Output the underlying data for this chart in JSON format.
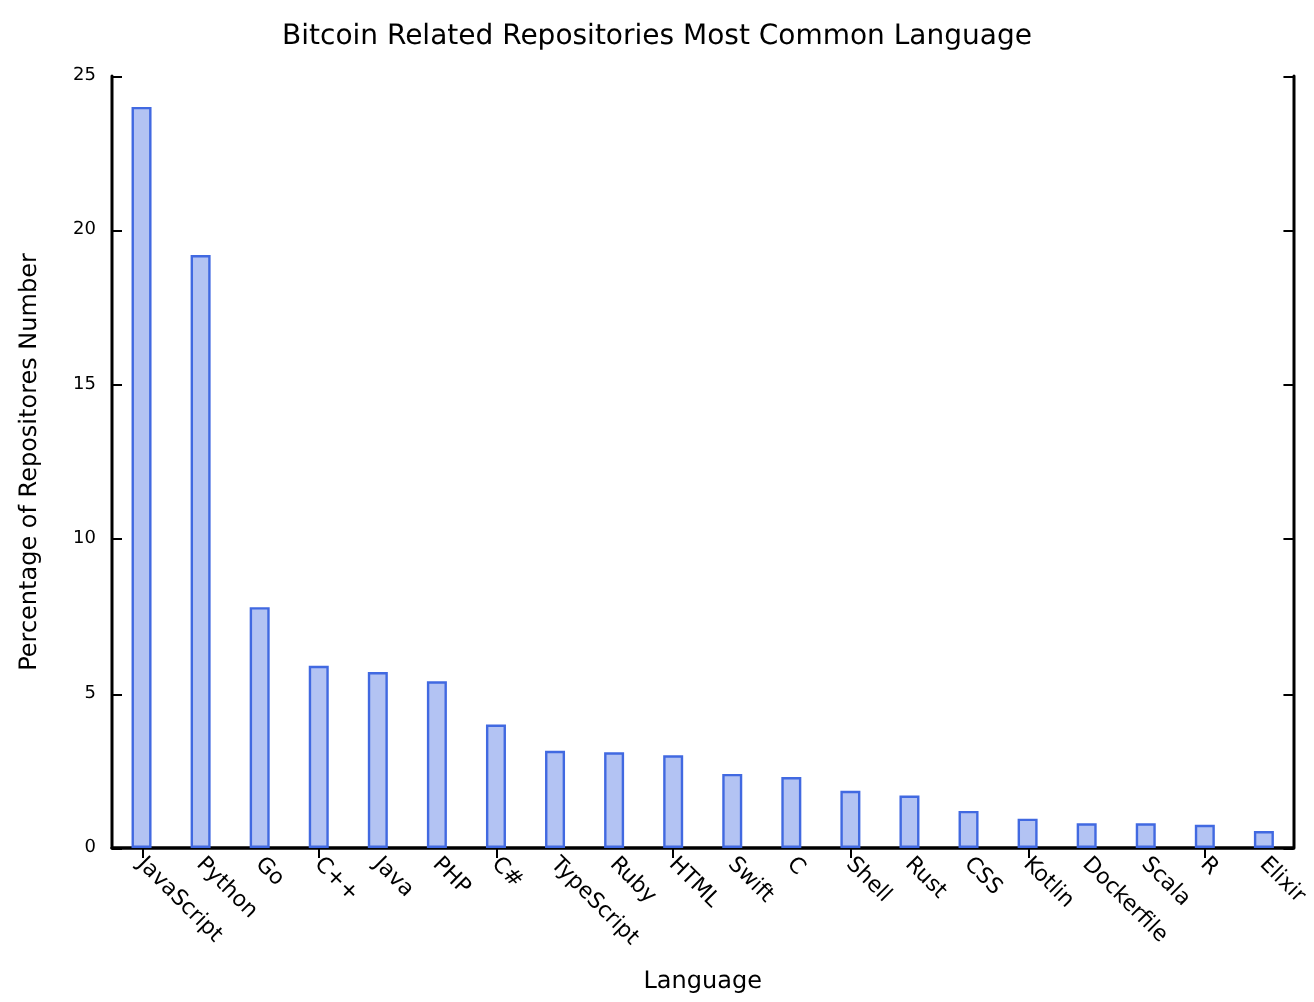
{
  "chart_data": {
    "type": "bar",
    "title": "Bitcoin Related Repositories Most Common Language",
    "xlabel": "Language",
    "ylabel": "Percentage of Repositores Number",
    "categories": [
      "JavaScript",
      "Python",
      "Go",
      "C++",
      "Java",
      "PHP",
      "C#",
      "TypeScript",
      "Ruby",
      "HTML",
      "Swift",
      "C",
      "Shell",
      "Rust",
      "CSS",
      "Kotlin",
      "Dockerfile",
      "Scala",
      "R",
      "Elixir"
    ],
    "values": [
      24.0,
      19.2,
      7.8,
      5.9,
      5.7,
      5.4,
      4.0,
      3.15,
      3.1,
      3.0,
      2.4,
      2.3,
      1.85,
      1.7,
      1.2,
      0.95,
      0.8,
      0.8,
      0.75,
      0.55
    ],
    "color": "#b3c3f3",
    "ylim": [
      0,
      25
    ],
    "yticks": [
      0,
      5,
      10,
      15,
      20,
      25
    ]
  }
}
